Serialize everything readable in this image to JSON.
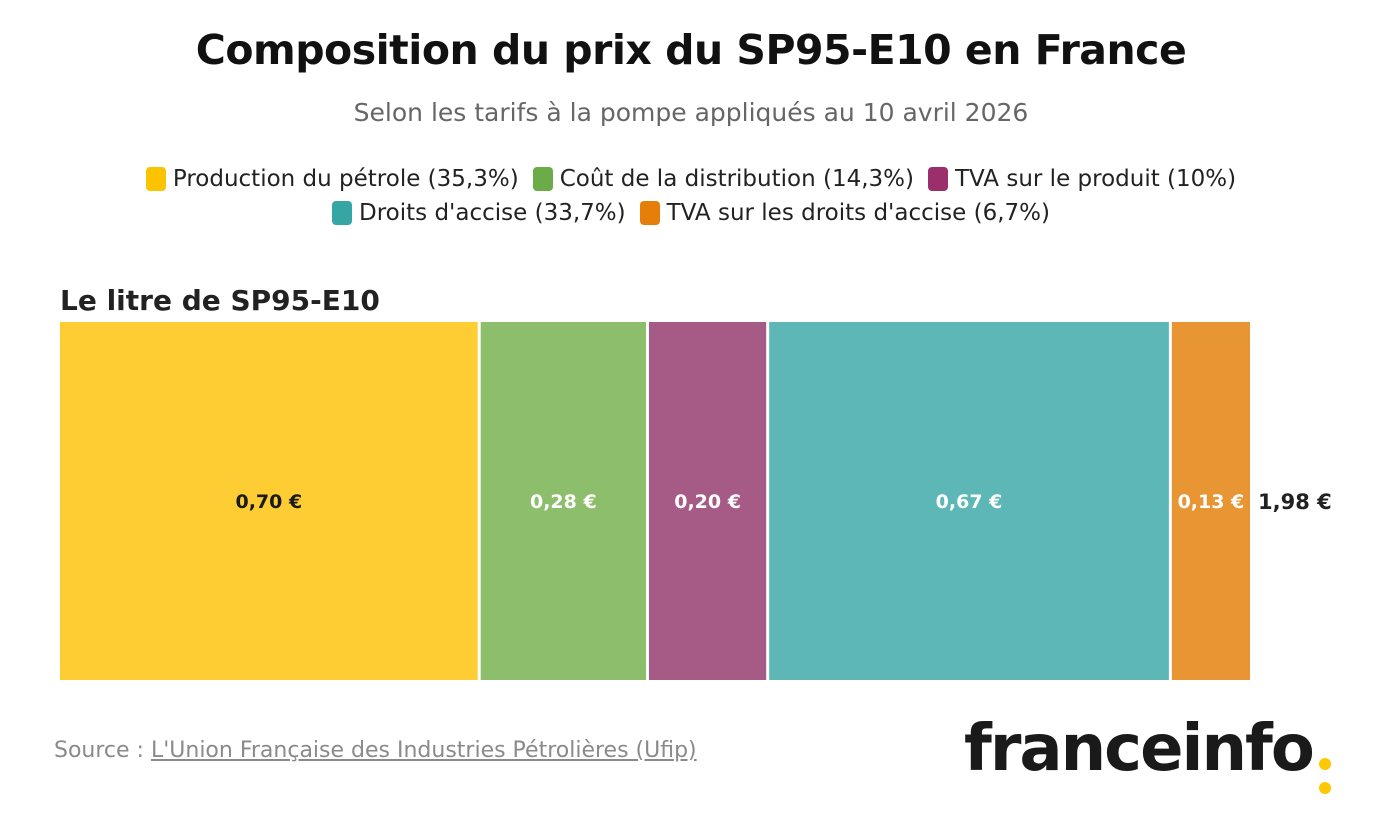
{
  "header": {
    "title": "Composition du prix du SP95-E10 en France",
    "subtitle": "Selon les tarifs à la pompe appliqués au 10 avril 2026"
  },
  "legend": [
    {
      "label": "Production du pétrole (35,3%)",
      "color": "#fcc400"
    },
    {
      "label": "Coût de la distribution (14,3%)",
      "color": "#6cac48"
    },
    {
      "label": "TVA sur le produit (10%)",
      "color": "#9b2f6b"
    },
    {
      "label": "Droits d'accise (33,7%)",
      "color": "#36a6a5"
    },
    {
      "label": "TVA sur les droits d'accise (6,7%)",
      "color": "#e67e0a"
    }
  ],
  "chart_data": {
    "type": "bar",
    "orientation": "horizontal-stacked",
    "bar_title": "Le litre de SP95-E10",
    "categories": [
      "Le litre de SP95-E10"
    ],
    "series": [
      {
        "name": "Production du pétrole (35,3%)",
        "values": [
          0.7
        ],
        "label": "0,70 €",
        "color": "#fdcd33",
        "text_color": "#1a1a1a"
      },
      {
        "name": "Coût de la distribution (14,3%)",
        "values": [
          0.28
        ],
        "label": "0,28 €",
        "color": "#8dbe6c",
        "text_color": "#ffffff"
      },
      {
        "name": "TVA sur le produit (10%)",
        "values": [
          0.2
        ],
        "label": "0,20 €",
        "color": "#a65a86",
        "text_color": "#ffffff"
      },
      {
        "name": "Droits d'accise (33,7%)",
        "values": [
          0.67
        ],
        "label": "0,67 €",
        "color": "#5eb7b7",
        "text_color": "#ffffff"
      },
      {
        "name": "TVA sur les droits d'accise (6,7%)",
        "values": [
          0.13
        ],
        "label": "0,13 €",
        "color": "#e89634",
        "text_color": "#ffffff"
      }
    ],
    "total": 1.98,
    "total_label": "1,98 €",
    "unit": "€"
  },
  "footer": {
    "source_prefix": "Source : ",
    "source_link": "L'Union Française des Industries Pétrolières (Ufip)",
    "logo_text": "franceinfo"
  }
}
